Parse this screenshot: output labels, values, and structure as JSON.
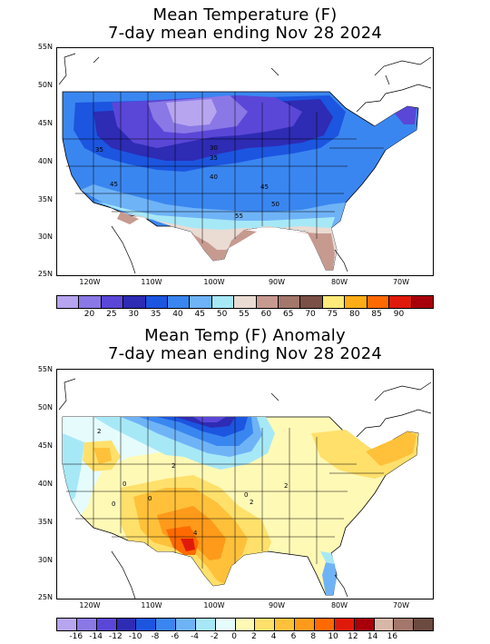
{
  "top_map": {
    "title_line1": "Mean Temperature (F)",
    "title_line2": "7-day mean ending Nov 28 2024",
    "lat_labels": [
      "55N",
      "50N",
      "45N",
      "40N",
      "35N",
      "30N",
      "25N"
    ],
    "lon_labels": [
      "120W",
      "110W",
      "100W",
      "90W",
      "80W",
      "70W"
    ],
    "contour_labels": [
      "35",
      "30",
      "35",
      "40",
      "45",
      "45",
      "50",
      "55"
    ],
    "colorbar": {
      "colors": [
        "#b7a5f0",
        "#8a78e6",
        "#5a47d8",
        "#2e2bb4",
        "#1c55e0",
        "#3a86f0",
        "#6fb3f7",
        "#a7e8f7",
        "#eadbd3",
        "#c79a90",
        "#a3776b",
        "#7b5046",
        "#ffea7a",
        "#ffad17",
        "#ff6a00",
        "#e01a0a",
        "#a8000a"
      ],
      "labels": [
        "20",
        "25",
        "30",
        "35",
        "40",
        "45",
        "50",
        "55",
        "60",
        "65",
        "70",
        "75",
        "80",
        "85",
        "90"
      ]
    }
  },
  "bottom_map": {
    "title_line1": "Mean Temp (F) Anomaly",
    "title_line2": "7-day mean ending Nov 28 2024",
    "lat_labels": [
      "55N",
      "50N",
      "45N",
      "40N",
      "35N",
      "30N",
      "25N"
    ],
    "lon_labels": [
      "120W",
      "110W",
      "100W",
      "90W",
      "80W",
      "70W"
    ],
    "contour_labels": [
      "2",
      "2",
      "0",
      "0",
      "2",
      "0",
      "0",
      "2",
      "4"
    ],
    "colorbar": {
      "colors": [
        "#b7a5f0",
        "#8a78e6",
        "#5a47d8",
        "#2e2bb4",
        "#1c55e0",
        "#3a86f0",
        "#6fb3f7",
        "#a7e8f7",
        "#e6fcfc",
        "#fff9b6",
        "#ffe06b",
        "#ffc13a",
        "#ff9a1a",
        "#ff6a00",
        "#e01a0a",
        "#a8000a",
        "#d8b7a8",
        "#a3776b",
        "#6b4a40"
      ],
      "labels": [
        "-16",
        "-14",
        "-12",
        "-10",
        "-8",
        "-6",
        "-4",
        "-2",
        "0",
        "2",
        "4",
        "6",
        "8",
        "10",
        "12",
        "14",
        "16"
      ]
    }
  }
}
